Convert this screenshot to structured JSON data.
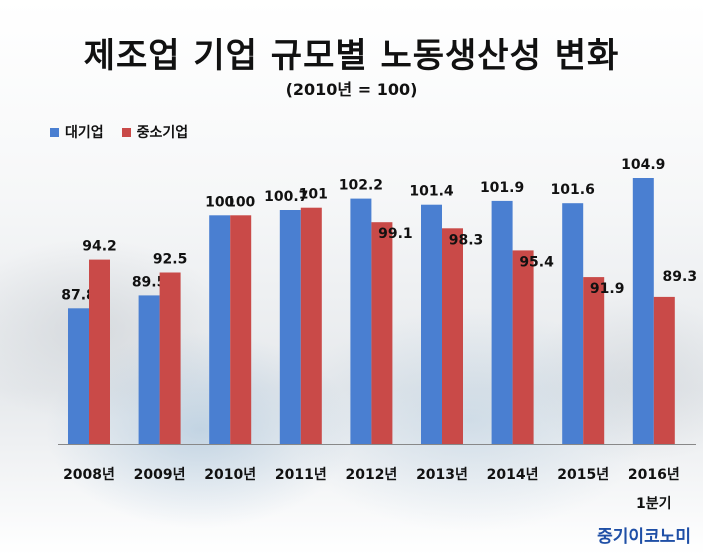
{
  "chart_data": {
    "type": "bar",
    "title": "제조업 기업 규모별 노동생산성 변화",
    "subtitle": "(2010년 = 100)",
    "categories": [
      "2008년",
      "2009년",
      "2010년",
      "2011년",
      "2012년",
      "2013년",
      "2014년",
      "2015년",
      "2016년"
    ],
    "category_sublabels": [
      "",
      "",
      "",
      "",
      "",
      "",
      "",
      "",
      "1분기"
    ],
    "series": [
      {
        "name": "대기업",
        "color": "#4a7fd1",
        "values": [
          87.8,
          89.5,
          100,
          100.7,
          102.2,
          101.4,
          101.9,
          101.6,
          104.9
        ],
        "labels": [
          "87.8",
          "89.5",
          "100",
          "100.7",
          "102.2",
          "101.4",
          "101.9",
          "101.6",
          "104.9"
        ]
      },
      {
        "name": "중소기업",
        "color": "#c94a48",
        "values": [
          94.2,
          92.5,
          100,
          101,
          99.1,
          98.3,
          95.4,
          91.9,
          89.3
        ],
        "labels": [
          "94.2",
          "92.5",
          "100",
          "101",
          "99.1",
          "98.3",
          "95.4",
          "91.9",
          "89.3"
        ]
      }
    ],
    "ylim": [
      70,
      110
    ],
    "grid": false,
    "legend_position": "top-left"
  },
  "footer": {
    "brand": "중기이코노미"
  }
}
